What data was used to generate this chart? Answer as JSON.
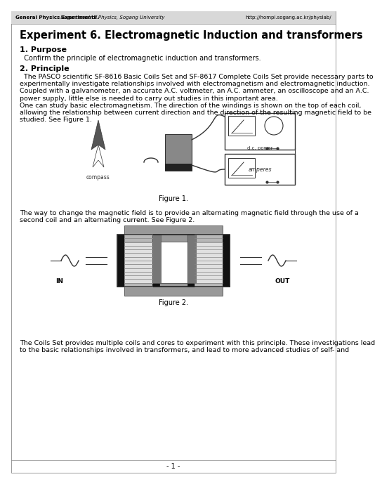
{
  "header_bold": "General Physics ExperimentⅡ.",
  "header_italic": " Department of Physics, Sogang University",
  "header_url": "http://hompi.sogang.ac.kr/physlab/",
  "main_title": "Experiment 6. Electromagnetic Induction and transformers",
  "section1_title": "1. Purpose",
  "section1_body": "  Confirm the principle of electromagnetic induction and transformers.",
  "section2_title": "2. Principle",
  "body1_lines": [
    "  The PASCO scientific SF-8616 Basic Coils Set and SF-8617 Complete Coils Set provide necessary parts to",
    "experimentally investigate relationships involved with electromagnetism and electromagnetic induction.",
    "Coupled with a galvanometer, an accurate A.C. voltmeter, an A.C. ammeter, an oscilloscope and an A.C.",
    "power supply, little else is needed to carry out studies in this important area."
  ],
  "body2_lines": [
    "One can study basic electromagnetism. The direction of the windings is shown on the top of each coil,",
    "allowing the relationship between current direction and the direction of the resulting magnetic field to be",
    "studied. See Figure 1."
  ],
  "figure1_caption": "Figure 1.",
  "fig2_text_lines": [
    "The way to change the magnetic field is to provide an alternating magnetic field through the use of a",
    "second coil and an alternating current. See Figure 2."
  ],
  "figure2_caption": "Figure 2.",
  "figure2_in": "IN",
  "figure2_out": "OUT",
  "bottom_lines": [
    "The Coils Set provides multiple coils and cores to experiment with this principle. These investigations lead",
    "to the basic relationships involved in transformers, and lead to more advanced studies of self- and"
  ],
  "page_number": "- 1 -",
  "bg_color": "#ffffff",
  "text_color": "#1a1a1a",
  "header_bg": "#d8d8d8"
}
